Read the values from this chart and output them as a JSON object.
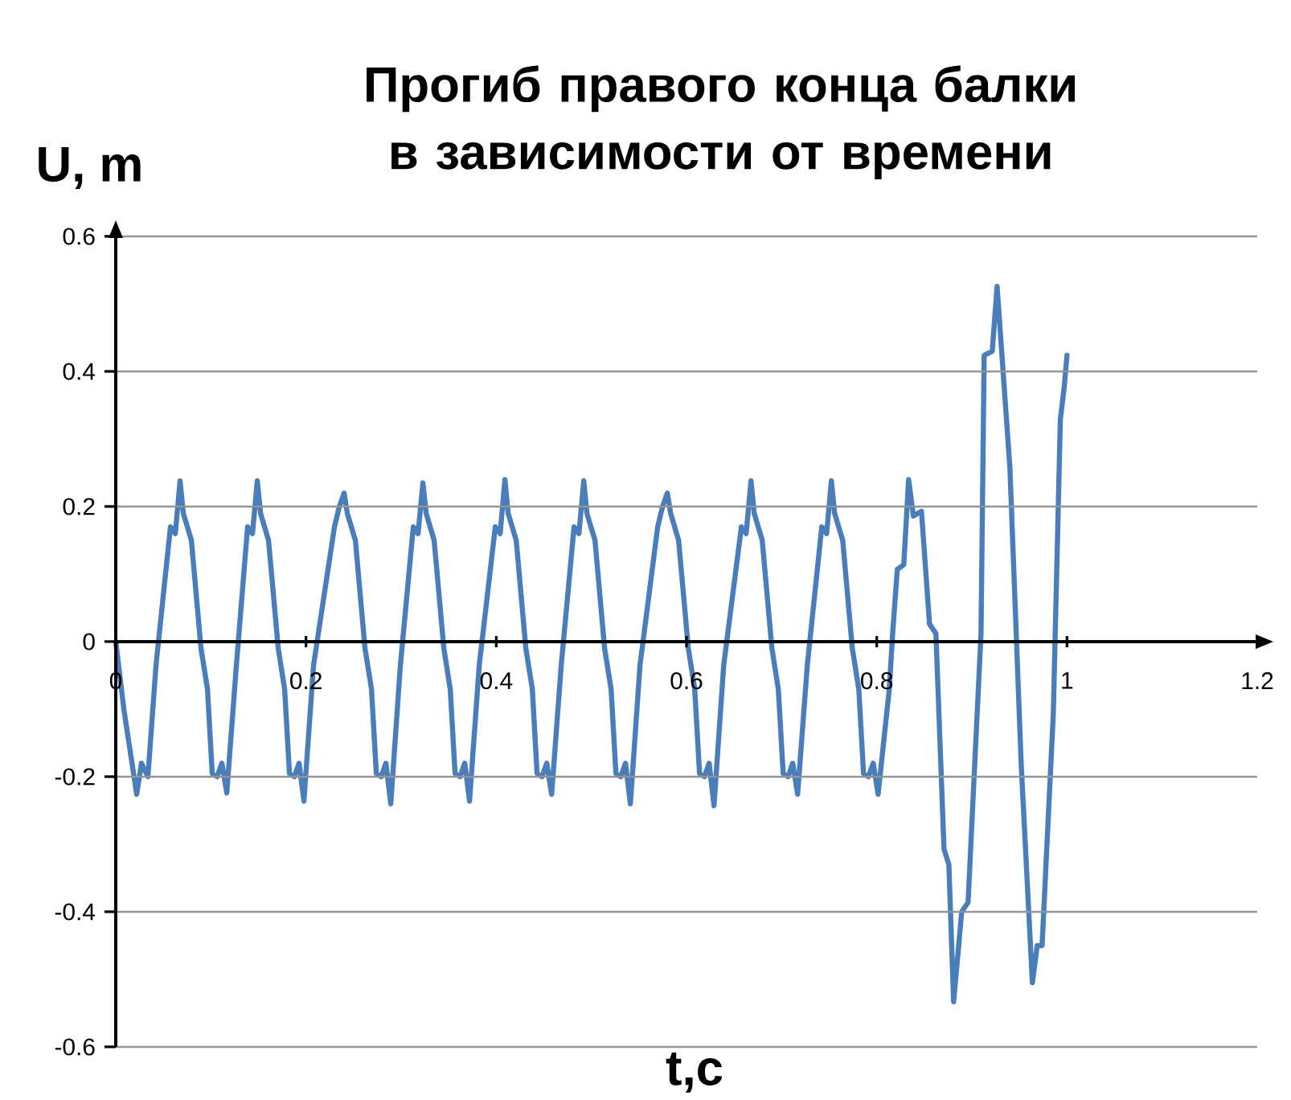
{
  "chart_data": {
    "type": "line",
    "title": "Прогиб правого конца балки в зависимости от времени",
    "xlabel": "t,c",
    "ylabel": "U, m",
    "xlim": [
      0,
      1.2
    ],
    "ylim": [
      -0.6,
      0.6
    ],
    "xticks": [
      0,
      0.2,
      0.4,
      0.6,
      0.8,
      1,
      1.2
    ],
    "yticks": [
      -0.6,
      -0.4,
      -0.2,
      0,
      0.2,
      0.4,
      0.6
    ],
    "grid": "y",
    "marker": "none",
    "line_style": "solid",
    "series": [
      {
        "color": "#4a7ebb",
        "x": [
          0,
          0.0085,
          0.022,
          0.027,
          0.0338,
          0.0423,
          0.0575,
          0.0626,
          0.0676,
          0.071,
          0.0795,
          0.0896,
          0.0964,
          0.1014,
          0.1065,
          0.1116,
          0.1167,
          0.1268,
          0.1386,
          0.1437,
          0.1488,
          0.1522,
          0.1606,
          0.1708,
          0.1775,
          0.1826,
          0.1877,
          0.1927,
          0.1978,
          0.2079,
          0.2299,
          0.235,
          0.2401,
          0.2434,
          0.2519,
          0.262,
          0.2688,
          0.2739,
          0.279,
          0.284,
          0.2891,
          0.2992,
          0.3128,
          0.3178,
          0.3229,
          0.3263,
          0.3347,
          0.3449,
          0.3516,
          0.3567,
          0.3618,
          0.3669,
          0.3719,
          0.3821,
          0.399,
          0.4041,
          0.4091,
          0.4125,
          0.421,
          0.4311,
          0.4379,
          0.4429,
          0.448,
          0.4531,
          0.4582,
          0.4683,
          0.4818,
          0.4869,
          0.492,
          0.4953,
          0.5038,
          0.5139,
          0.5207,
          0.5258,
          0.5309,
          0.5359,
          0.541,
          0.5511,
          0.5697,
          0.5748,
          0.5799,
          0.5833,
          0.5917,
          0.6019,
          0.6086,
          0.6137,
          0.6188,
          0.6238,
          0.6289,
          0.6391,
          0.6577,
          0.6627,
          0.6678,
          0.6712,
          0.6796,
          0.6898,
          0.6965,
          0.7016,
          0.7067,
          0.7117,
          0.7168,
          0.727,
          0.7422,
          0.7473,
          0.7523,
          0.7557,
          0.7642,
          0.7743,
          0.7811,
          0.7861,
          0.7912,
          0.7963,
          0.8014,
          0.8132,
          0.8166,
          0.8216,
          0.8284,
          0.8335,
          0.8385,
          0.847,
          0.8555,
          0.8622,
          0.8707,
          0.8758,
          0.8808,
          0.8893,
          0.896,
          0.9096,
          0.9129,
          0.9214,
          0.9265,
          0.94,
          0.9518,
          0.9636,
          0.9687,
          0.9738,
          0.9856,
          0.993,
          0.997,
          1.0
        ],
        "values": [
          0,
          -0.1,
          -0.226,
          -0.18,
          -0.2,
          -0.035,
          0.17,
          0.16,
          0.238,
          0.19,
          0.15,
          -0.01,
          -0.07,
          -0.195,
          -0.2,
          -0.18,
          -0.224,
          -0.035,
          0.17,
          0.16,
          0.238,
          0.19,
          0.15,
          -0.01,
          -0.07,
          -0.195,
          -0.2,
          -0.18,
          -0.236,
          -0.035,
          0.17,
          0.2,
          0.22,
          0.19,
          0.15,
          -0.01,
          -0.07,
          -0.195,
          -0.2,
          -0.18,
          -0.24,
          -0.035,
          0.17,
          0.16,
          0.235,
          0.19,
          0.15,
          -0.01,
          -0.07,
          -0.195,
          -0.2,
          -0.18,
          -0.236,
          -0.035,
          0.17,
          0.16,
          0.24,
          0.19,
          0.15,
          -0.01,
          -0.07,
          -0.195,
          -0.2,
          -0.18,
          -0.226,
          -0.035,
          0.17,
          0.16,
          0.238,
          0.19,
          0.15,
          -0.01,
          -0.07,
          -0.195,
          -0.2,
          -0.18,
          -0.24,
          -0.035,
          0.17,
          0.2,
          0.22,
          0.19,
          0.15,
          -0.01,
          -0.07,
          -0.195,
          -0.2,
          -0.18,
          -0.243,
          -0.035,
          0.17,
          0.16,
          0.238,
          0.19,
          0.15,
          -0.01,
          -0.07,
          -0.195,
          -0.2,
          -0.18,
          -0.226,
          -0.035,
          0.17,
          0.16,
          0.238,
          0.19,
          0.15,
          -0.01,
          -0.07,
          -0.195,
          -0.2,
          -0.18,
          -0.226,
          -0.07,
          0.01,
          0.107,
          0.114,
          0.24,
          0.186,
          0.193,
          0.026,
          0.012,
          -0.307,
          -0.33,
          -0.533,
          -0.4,
          -0.386,
          0.012,
          0.424,
          0.43,
          0.526,
          0.257,
          -0.18,
          -0.505,
          -0.45,
          -0.45,
          -0.107,
          0.329,
          0.376,
          0.424
        ]
      }
    ]
  }
}
